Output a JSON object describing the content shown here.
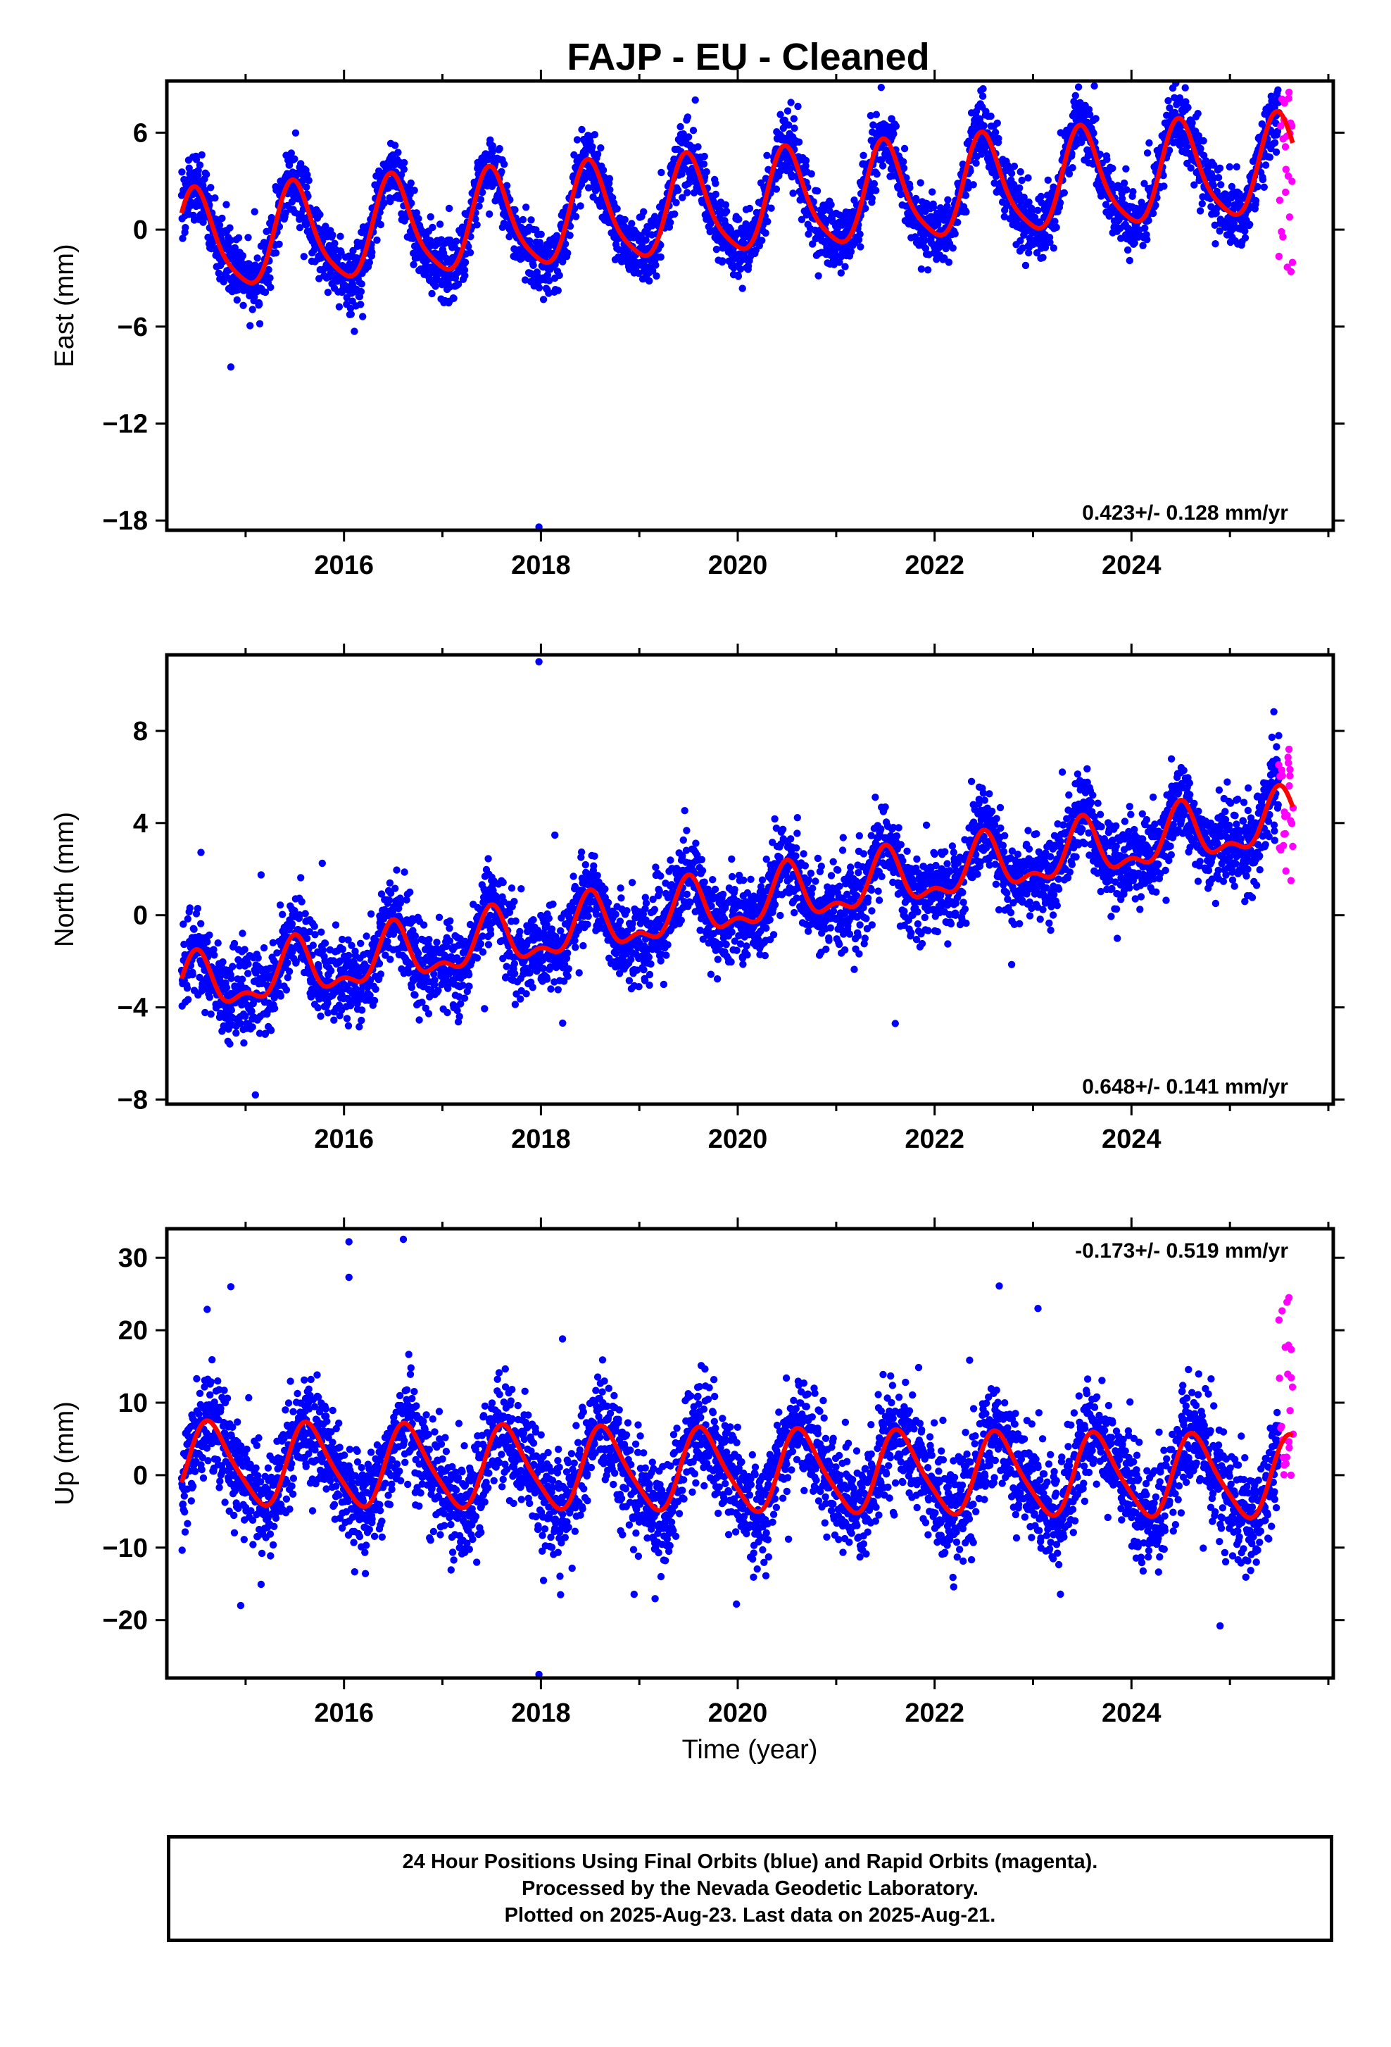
{
  "title": "FAJP  - EU - Cleaned",
  "x_axis_label": "Time (year)",
  "footer": [
    "24 Hour Positions Using Final Orbits (blue) and Rapid Orbits (magenta).",
    "Processed by the Nevada Geodetic Laboratory.",
    "Plotted on 2025-Aug-23. Last data on 2025-Aug-21."
  ],
  "colors": {
    "final": "#0000ff",
    "rapid": "#ff00ff",
    "fit": "#ff0000",
    "frame": "#000000"
  },
  "chart_data": [
    {
      "type": "scatter",
      "ylabel": "East (mm)",
      "xlim": [
        2014.2,
        2026.05
      ],
      "ylim": [
        -18.6,
        9.2
      ],
      "x_ticks": [
        2016,
        2018,
        2020,
        2022,
        2024
      ],
      "y_ticks": [
        -18,
        -12,
        -6,
        0,
        6
      ],
      "annotation": "0.423+/- 0.128 mm/yr",
      "annotation_position": "bottom-right",
      "data_range": [
        2014.35,
        2025.64
      ],
      "rapid_range": [
        2025.5,
        2025.64
      ],
      "model": {
        "offset": -0.9,
        "rate": 0.423,
        "t0": 2014.4,
        "annual_amp": 3.0,
        "annual_peak": 2015.5,
        "semiannual_amp": 0.6,
        "semiannual_peak": 2015.45,
        "scatter": 1.0
      },
      "series": [
        {
          "name": "Final Orbits",
          "color": "#0000ff"
        },
        {
          "name": "Rapid Orbits",
          "color": "#ff00ff"
        }
      ],
      "outliers": [
        {
          "x": 2014.85,
          "y": -8.5
        },
        {
          "x": 2017.98,
          "y": -18.4
        },
        {
          "x": 2022.47,
          "y": 8.6
        }
      ],
      "rapid_extremes": [
        {
          "x": 2025.6,
          "y": 8.5
        },
        {
          "x": 2025.62,
          "y": -2.6
        }
      ],
      "grid": false
    },
    {
      "type": "scatter",
      "ylabel": "North (mm)",
      "xlim": [
        2014.2,
        2026.05
      ],
      "ylim": [
        -8.2,
        11.3
      ],
      "x_ticks": [
        2016,
        2018,
        2020,
        2022,
        2024
      ],
      "y_ticks": [
        -8,
        -4,
        0,
        4,
        8
      ],
      "annotation": "0.648+/- 0.141 mm/yr",
      "annotation_position": "bottom-right",
      "data_range": [
        2014.35,
        2025.64
      ],
      "rapid_range": [
        2025.5,
        2025.64
      ],
      "model": {
        "offset": -3.2,
        "rate": 0.648,
        "t0": 2014.4,
        "annual_amp": 1.1,
        "annual_peak": 2015.5,
        "semiannual_amp": 0.55,
        "semiannual_peak": 2015.5,
        "scatter": 0.9
      },
      "series": [
        {
          "name": "Final Orbits",
          "color": "#0000ff"
        },
        {
          "name": "Rapid Orbits",
          "color": "#ff00ff"
        }
      ],
      "outliers": [
        {
          "x": 2017.98,
          "y": 11.0
        },
        {
          "x": 2015.1,
          "y": -7.8
        },
        {
          "x": 2021.6,
          "y": -4.7
        }
      ],
      "rapid_extremes": [
        {
          "x": 2025.6,
          "y": 7.2
        },
        {
          "x": 2025.62,
          "y": 1.5
        }
      ],
      "grid": false
    },
    {
      "type": "scatter",
      "ylabel": "Up (mm)",
      "xlim": [
        2014.2,
        2026.05
      ],
      "ylim": [
        -28,
        34
      ],
      "x_ticks": [
        2016,
        2018,
        2020,
        2022,
        2024
      ],
      "y_ticks": [
        -20,
        -10,
        0,
        10,
        20,
        30
      ],
      "annotation": "-0.173+/- 0.519 mm/yr",
      "annotation_position": "top-right",
      "data_range": [
        2014.35,
        2025.64
      ],
      "rapid_range": [
        2025.5,
        2025.64
      ],
      "model": {
        "offset": 1.5,
        "rate": -0.173,
        "t0": 2014.4,
        "annual_amp": 5.5,
        "annual_peak": 2015.65,
        "semiannual_amp": 1.0,
        "semiannual_peak": 2015.55,
        "scatter": 3.6
      },
      "series": [
        {
          "name": "Final Orbits",
          "color": "#0000ff"
        },
        {
          "name": "Rapid Orbits",
          "color": "#ff00ff"
        }
      ],
      "outliers": [
        {
          "x": 2016.05,
          "y": 32.2
        },
        {
          "x": 2016.05,
          "y": 27.3
        },
        {
          "x": 2014.85,
          "y": 26.0
        },
        {
          "x": 2017.98,
          "y": -27.5
        },
        {
          "x": 2018.2,
          "y": -16.5
        },
        {
          "x": 2018.22,
          "y": 18.8
        },
        {
          "x": 2023.05,
          "y": 23.0
        },
        {
          "x": 2024.9,
          "y": -20.8
        },
        {
          "x": 2014.95,
          "y": -18.0
        }
      ],
      "rapid_extremes": [
        {
          "x": 2025.6,
          "y": 24.5
        },
        {
          "x": 2025.62,
          "y": 0.0
        }
      ],
      "grid": false
    }
  ]
}
